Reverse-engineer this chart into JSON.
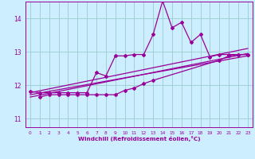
{
  "xlabel": "Windchill (Refroidissement éolien,°C)",
  "bg_color": "#cceeff",
  "grid_color": "#99cccc",
  "line_color": "#990099",
  "xlim": [
    -0.5,
    23.5
  ],
  "ylim": [
    10.75,
    14.5
  ],
  "yticks": [
    11,
    12,
    13,
    14
  ],
  "xticks": [
    0,
    1,
    2,
    3,
    4,
    5,
    6,
    7,
    8,
    9,
    10,
    11,
    12,
    13,
    14,
    15,
    16,
    17,
    18,
    19,
    20,
    21,
    22,
    23
  ],
  "series1_x": [
    0,
    1,
    2,
    3,
    4,
    5,
    6,
    7,
    8,
    9,
    10,
    11,
    12,
    13,
    14,
    15,
    16,
    17,
    18,
    19,
    20,
    21,
    22,
    23
  ],
  "series1_y": [
    11.82,
    11.78,
    11.78,
    11.78,
    11.78,
    11.78,
    11.78,
    12.38,
    12.28,
    12.88,
    12.88,
    12.92,
    12.92,
    13.52,
    14.52,
    13.72,
    13.88,
    13.28,
    13.52,
    12.85,
    12.92,
    12.92,
    12.92,
    12.92
  ],
  "series2_x": [
    1,
    2,
    3,
    4,
    5,
    6,
    7,
    8,
    9,
    10,
    11,
    12,
    13,
    20,
    21,
    22,
    23
  ],
  "series2_y": [
    11.65,
    11.72,
    11.72,
    11.72,
    11.72,
    11.72,
    11.72,
    11.72,
    11.72,
    11.85,
    11.92,
    12.05,
    12.15,
    12.75,
    12.88,
    12.92,
    12.92
  ],
  "trend1_x": [
    0,
    23
  ],
  "trend1_y": [
    11.78,
    13.1
  ],
  "trend2_x": [
    0,
    23
  ],
  "trend2_y": [
    11.72,
    12.88
  ],
  "trend3_x": [
    0,
    23
  ],
  "trend3_y": [
    11.65,
    12.95
  ]
}
